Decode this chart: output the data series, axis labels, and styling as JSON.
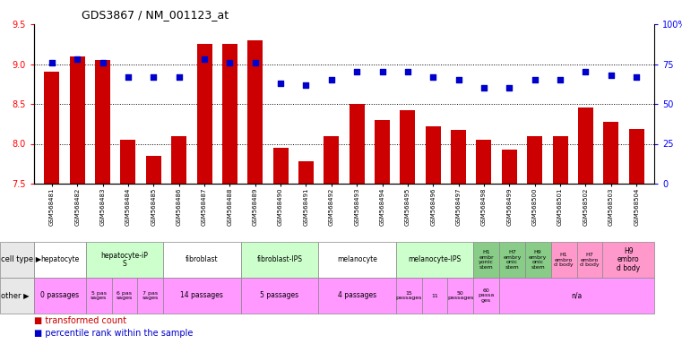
{
  "title": "GDS3867 / NM_001123_at",
  "samples": [
    "GSM568481",
    "GSM568482",
    "GSM568483",
    "GSM568484",
    "GSM568485",
    "GSM568486",
    "GSM568487",
    "GSM568488",
    "GSM568489",
    "GSM568490",
    "GSM568491",
    "GSM568492",
    "GSM568493",
    "GSM568494",
    "GSM568495",
    "GSM568496",
    "GSM568497",
    "GSM568498",
    "GSM568499",
    "GSM568500",
    "GSM568501",
    "GSM568502",
    "GSM568503",
    "GSM568504"
  ],
  "bar_values": [
    8.9,
    9.1,
    9.05,
    8.05,
    7.85,
    8.1,
    9.25,
    9.25,
    9.3,
    7.95,
    7.78,
    8.1,
    8.5,
    8.3,
    8.42,
    8.22,
    8.17,
    8.05,
    7.93,
    8.1,
    8.1,
    8.45,
    8.28,
    8.18
  ],
  "dot_values_pct": [
    76,
    78,
    76,
    67,
    67,
    67,
    78,
    76,
    76,
    63,
    62,
    65,
    70,
    70,
    70,
    67,
    65,
    60,
    60,
    65,
    65,
    70,
    68,
    67
  ],
  "ylim_left": [
    7.5,
    9.5
  ],
  "ylim_right": [
    0,
    100
  ],
  "yticks_left": [
    7.5,
    8.0,
    8.5,
    9.0,
    9.5
  ],
  "yticks_right": [
    0,
    25,
    50,
    75,
    100
  ],
  "bar_color": "#cc0000",
  "dot_color": "#0000cc",
  "hgrid_vals": [
    8.0,
    8.5,
    9.0
  ],
  "cell_groups": [
    {
      "label": "hepatocyte",
      "start": 0,
      "end": 2,
      "color": "#ffffff"
    },
    {
      "label": "hepatocyte-iP\nS",
      "start": 2,
      "end": 5,
      "color": "#ccffcc"
    },
    {
      "label": "fibroblast",
      "start": 5,
      "end": 8,
      "color": "#ffffff"
    },
    {
      "label": "fibroblast-IPS",
      "start": 8,
      "end": 11,
      "color": "#ccffcc"
    },
    {
      "label": "melanocyte",
      "start": 11,
      "end": 14,
      "color": "#ffffff"
    },
    {
      "label": "melanocyte-IPS",
      "start": 14,
      "end": 17,
      "color": "#ccffcc"
    },
    {
      "label": "H1\nembr\nyonic\nstem",
      "start": 17,
      "end": 18,
      "color": "#88cc88"
    },
    {
      "label": "H7\nembry\nonic\nstem",
      "start": 18,
      "end": 19,
      "color": "#88cc88"
    },
    {
      "label": "H9\nembry\nonic\nstem",
      "start": 19,
      "end": 20,
      "color": "#88cc88"
    },
    {
      "label": "H1\nembro\nd body",
      "start": 20,
      "end": 21,
      "color": "#ff99cc"
    },
    {
      "label": "H7\nembro\nd body",
      "start": 21,
      "end": 22,
      "color": "#ff99cc"
    },
    {
      "label": "H9\nembro\nd body",
      "start": 22,
      "end": 24,
      "color": "#ff99cc"
    }
  ],
  "other_groups": [
    {
      "label": "0 passages",
      "start": 0,
      "end": 2,
      "color": "#ff99ff"
    },
    {
      "label": "5 pas\nsages",
      "start": 2,
      "end": 3,
      "color": "#ff99ff"
    },
    {
      "label": "6 pas\nsages",
      "start": 3,
      "end": 4,
      "color": "#ff99ff"
    },
    {
      "label": "7 pas\nsages",
      "start": 4,
      "end": 5,
      "color": "#ff99ff"
    },
    {
      "label": "14 passages",
      "start": 5,
      "end": 8,
      "color": "#ff99ff"
    },
    {
      "label": "5 passages",
      "start": 8,
      "end": 11,
      "color": "#ff99ff"
    },
    {
      "label": "4 passages",
      "start": 11,
      "end": 14,
      "color": "#ff99ff"
    },
    {
      "label": "15\npassages",
      "start": 14,
      "end": 15,
      "color": "#ff99ff"
    },
    {
      "label": "11",
      "start": 15,
      "end": 16,
      "color": "#ff99ff"
    },
    {
      "label": "50\npassages",
      "start": 16,
      "end": 17,
      "color": "#ff99ff"
    },
    {
      "label": "60\npassa\nges",
      "start": 17,
      "end": 18,
      "color": "#ff99ff"
    },
    {
      "label": "n/a",
      "start": 18,
      "end": 24,
      "color": "#ff99ff"
    }
  ],
  "bg_color": "#f0f0f0",
  "row_label_color": "#333333"
}
